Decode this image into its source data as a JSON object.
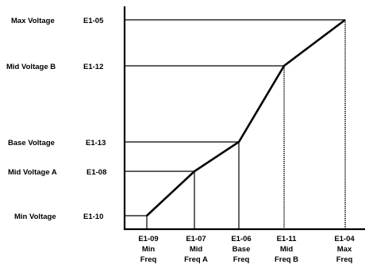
{
  "diagram": {
    "voltage_levels": [
      {
        "id": "max",
        "name": "Max Voltage",
        "param": "E1-05"
      },
      {
        "id": "midB",
        "name": "Mid Voltage B",
        "param": "E1-12"
      },
      {
        "id": "base",
        "name": "Base Voltage",
        "param": "E1-13"
      },
      {
        "id": "midA",
        "name": "Mid Voltage A",
        "param": "E1-08"
      },
      {
        "id": "min",
        "name": "Min Voltage",
        "param": "E1-10"
      }
    ],
    "frequency_points": [
      {
        "id": "min",
        "param": "E1-09",
        "line1": "Min",
        "line2": "Freq"
      },
      {
        "id": "midA",
        "param": "E1-07",
        "line1": "Mid",
        "line2": "Freq A"
      },
      {
        "id": "base",
        "param": "E1-06",
        "line1": "Base",
        "line2": "Freq"
      },
      {
        "id": "midB",
        "param": "E1-11",
        "line1": "Mid",
        "line2": "Freq B"
      },
      {
        "id": "max",
        "param": "E1-04",
        "line1": "Max",
        "line2": "Freq"
      }
    ]
  }
}
